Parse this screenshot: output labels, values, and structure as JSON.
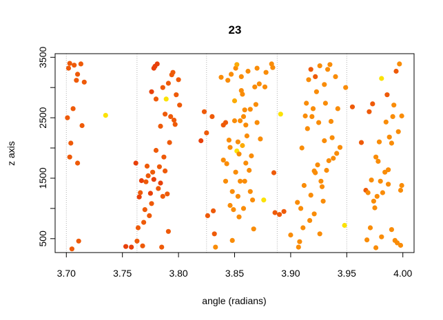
{
  "chart_data": {
    "type": "scatter",
    "title": "23",
    "xlabel": "angle (radians)",
    "ylabel": "z axis",
    "xlim": [
      3.69,
      4.01
    ],
    "ylim": [
      270,
      3560
    ],
    "x_ticks": [
      3.7,
      3.75,
      3.8,
      3.85,
      3.9,
      3.95,
      4.0
    ],
    "x_tick_labels": [
      "3.70",
      "3.75",
      "3.80",
      "3.85",
      "3.90",
      "3.95",
      "4.00"
    ],
    "y_ticks": [
      500,
      1000,
      1500,
      2000,
      2500,
      3000,
      3500
    ],
    "y_tick_labels": [
      "500",
      "",
      "1500",
      "",
      "2500",
      "",
      "3500"
    ],
    "grid": "vertical-dotted",
    "grid_x": [
      3.7,
      3.763,
      3.825,
      3.888,
      3.95
    ],
    "colors": {
      "red": "#e8400a",
      "red-orange": "#ee5a08",
      "orange": "#f98c08",
      "amber": "#fbab05",
      "yellow": "#fbe205"
    },
    "points": [
      [
        3.701,
        2500,
        "red-orange"
      ],
      [
        3.702,
        3320,
        "red-orange"
      ],
      [
        3.703,
        3400,
        "red-orange"
      ],
      [
        3.703,
        1850,
        "red-orange"
      ],
      [
        3.704,
        2080,
        "red-orange"
      ],
      [
        3.705,
        330,
        "red-orange"
      ],
      [
        3.706,
        2650,
        "red-orange"
      ],
      [
        3.707,
        3370,
        "red-orange"
      ],
      [
        3.709,
        3120,
        "red-orange"
      ],
      [
        3.71,
        1750,
        "red-orange"
      ],
      [
        3.71,
        3220,
        "red-orange"
      ],
      [
        3.711,
        460,
        "red-orange"
      ],
      [
        3.713,
        3390,
        "red-orange"
      ],
      [
        3.714,
        2370,
        "red-orange"
      ],
      [
        3.716,
        3090,
        "red-orange"
      ],
      [
        3.735,
        2540,
        "yellow"
      ],
      [
        3.753,
        370,
        "red"
      ],
      [
        3.758,
        360,
        "red"
      ],
      [
        3.762,
        1750,
        "red"
      ],
      [
        3.763,
        460,
        "red-orange"
      ],
      [
        3.764,
        680,
        "red-orange"
      ],
      [
        3.765,
        1190,
        "red"
      ],
      [
        3.766,
        1260,
        "red-orange"
      ],
      [
        3.767,
        1460,
        "red"
      ],
      [
        3.768,
        380,
        "red-orange"
      ],
      [
        3.769,
        770,
        "red-orange"
      ],
      [
        3.77,
        980,
        "red-orange"
      ],
      [
        3.771,
        1440,
        "red-orange"
      ],
      [
        3.772,
        1700,
        "red-orange"
      ],
      [
        3.773,
        1540,
        "red-orange"
      ],
      [
        3.774,
        880,
        "red-orange"
      ],
      [
        3.775,
        1250,
        "red"
      ],
      [
        3.776,
        1080,
        "red-orange"
      ],
      [
        3.776,
        2930,
        "red"
      ],
      [
        3.777,
        1600,
        "red-orange"
      ],
      [
        3.778,
        3320,
        "red"
      ],
      [
        3.778,
        1480,
        "red"
      ],
      [
        3.779,
        3350,
        "red"
      ],
      [
        3.78,
        1960,
        "red-orange"
      ],
      [
        3.78,
        2810,
        "red-orange"
      ],
      [
        3.781,
        3390,
        "red"
      ],
      [
        3.782,
        1330,
        "red-orange"
      ],
      [
        3.783,
        1690,
        "red-orange"
      ],
      [
        3.784,
        1420,
        "red"
      ],
      [
        3.784,
        2360,
        "red-orange"
      ],
      [
        3.785,
        360,
        "red-orange"
      ],
      [
        3.786,
        3000,
        "red-orange"
      ],
      [
        3.786,
        1200,
        "red-orange"
      ],
      [
        3.787,
        1850,
        "red-orange"
      ],
      [
        3.788,
        1620,
        "red-orange"
      ],
      [
        3.788,
        2560,
        "red-orange"
      ],
      [
        3.789,
        2810,
        "yellow"
      ],
      [
        3.79,
        1240,
        "red-orange"
      ],
      [
        3.791,
        3070,
        "red-orange"
      ],
      [
        3.791,
        620,
        "red-orange"
      ],
      [
        3.792,
        2090,
        "red-orange"
      ],
      [
        3.793,
        2520,
        "red-orange"
      ],
      [
        3.794,
        3210,
        "red-orange"
      ],
      [
        3.795,
        3250,
        "red-orange"
      ],
      [
        3.796,
        2460,
        "red-orange"
      ],
      [
        3.797,
        2390,
        "red-orange"
      ],
      [
        3.798,
        2880,
        "red-orange"
      ],
      [
        3.8,
        3130,
        "red-orange"
      ],
      [
        3.801,
        2710,
        "red-orange"
      ],
      [
        3.82,
        2120,
        "red"
      ],
      [
        3.823,
        2600,
        "red-orange"
      ],
      [
        3.825,
        2250,
        "red-orange"
      ],
      [
        3.826,
        880,
        "red-orange"
      ],
      [
        3.83,
        2520,
        "red-orange"
      ],
      [
        3.831,
        960,
        "red-orange"
      ],
      [
        3.832,
        580,
        "red-orange"
      ],
      [
        3.833,
        360,
        "orange"
      ],
      [
        3.838,
        3170,
        "orange"
      ],
      [
        3.84,
        2380,
        "red-orange"
      ],
      [
        3.84,
        1800,
        "orange"
      ],
      [
        3.842,
        1450,
        "orange"
      ],
      [
        3.842,
        2420,
        "red-orange"
      ],
      [
        3.843,
        1740,
        "orange"
      ],
      [
        3.844,
        3120,
        "orange"
      ],
      [
        3.845,
        2130,
        "orange"
      ],
      [
        3.846,
        2010,
        "orange"
      ],
      [
        3.846,
        1050,
        "orange"
      ],
      [
        3.847,
        3220,
        "orange"
      ],
      [
        3.848,
        1280,
        "orange"
      ],
      [
        3.848,
        470,
        "orange"
      ],
      [
        3.849,
        980,
        "orange"
      ],
      [
        3.85,
        2450,
        "orange"
      ],
      [
        3.85,
        2780,
        "amber"
      ],
      [
        3.851,
        1600,
        "orange"
      ],
      [
        3.851,
        3320,
        "orange"
      ],
      [
        3.852,
        3380,
        "amber"
      ],
      [
        3.852,
        1950,
        "yellow"
      ],
      [
        3.853,
        2100,
        "orange"
      ],
      [
        3.853,
        1200,
        "orange"
      ],
      [
        3.854,
        1900,
        "orange"
      ],
      [
        3.854,
        860,
        "orange"
      ],
      [
        3.855,
        2450,
        "orange"
      ],
      [
        3.855,
        1450,
        "orange"
      ],
      [
        3.856,
        3180,
        "orange"
      ],
      [
        3.856,
        2950,
        "orange"
      ],
      [
        3.857,
        2890,
        "orange"
      ],
      [
        3.857,
        2040,
        "amber"
      ],
      [
        3.858,
        2520,
        "orange"
      ],
      [
        3.858,
        1000,
        "orange"
      ],
      [
        3.859,
        2630,
        "orange"
      ],
      [
        3.859,
        1450,
        "orange"
      ],
      [
        3.86,
        1750,
        "orange"
      ],
      [
        3.86,
        2380,
        "orange"
      ],
      [
        3.861,
        2200,
        "orange"
      ],
      [
        3.862,
        3270,
        "orange"
      ],
      [
        3.863,
        1630,
        "orange"
      ],
      [
        3.864,
        1280,
        "orange"
      ],
      [
        3.864,
        2640,
        "orange"
      ],
      [
        3.865,
        1870,
        "orange"
      ],
      [
        3.866,
        1140,
        "orange"
      ],
      [
        3.867,
        660,
        "orange"
      ],
      [
        3.868,
        3010,
        "orange"
      ],
      [
        3.869,
        2720,
        "orange"
      ],
      [
        3.87,
        3320,
        "orange"
      ],
      [
        3.87,
        2420,
        "orange"
      ],
      [
        3.872,
        3060,
        "orange"
      ],
      [
        3.873,
        2150,
        "orange"
      ],
      [
        3.876,
        1140,
        "yellow"
      ],
      [
        3.877,
        3010,
        "orange"
      ],
      [
        3.878,
        3250,
        "orange"
      ],
      [
        3.883,
        3390,
        "orange"
      ],
      [
        3.884,
        3330,
        "orange"
      ],
      [
        3.885,
        1590,
        "red-orange"
      ],
      [
        3.886,
        930,
        "red-orange"
      ],
      [
        3.89,
        900,
        "red-orange"
      ],
      [
        3.891,
        2560,
        "yellow"
      ],
      [
        3.894,
        950,
        "red-orange"
      ],
      [
        3.9,
        560,
        "orange"
      ],
      [
        3.906,
        1100,
        "orange"
      ],
      [
        3.907,
        360,
        "orange"
      ],
      [
        3.908,
        450,
        "orange"
      ],
      [
        3.909,
        1000,
        "orange"
      ],
      [
        3.91,
        2000,
        "orange"
      ],
      [
        3.911,
        680,
        "orange"
      ],
      [
        3.912,
        1380,
        "orange"
      ],
      [
        3.913,
        2530,
        "orange"
      ],
      [
        3.914,
        2740,
        "orange"
      ],
      [
        3.915,
        2320,
        "orange"
      ],
      [
        3.916,
        3130,
        "orange"
      ],
      [
        3.917,
        800,
        "orange"
      ],
      [
        3.918,
        3300,
        "red-orange"
      ],
      [
        3.918,
        1220,
        "orange"
      ],
      [
        3.919,
        2520,
        "orange"
      ],
      [
        3.92,
        2650,
        "orange"
      ],
      [
        3.921,
        1620,
        "orange"
      ],
      [
        3.921,
        910,
        "orange"
      ],
      [
        3.922,
        1590,
        "orange"
      ],
      [
        3.922,
        3180,
        "red-orange"
      ],
      [
        3.923,
        2930,
        "orange"
      ],
      [
        3.924,
        1720,
        "orange"
      ],
      [
        3.925,
        2420,
        "orange"
      ],
      [
        3.926,
        3360,
        "orange"
      ],
      [
        3.926,
        580,
        "orange"
      ],
      [
        3.927,
        1450,
        "orange"
      ],
      [
        3.928,
        1360,
        "orange"
      ],
      [
        3.929,
        1120,
        "orange"
      ],
      [
        3.93,
        3050,
        "orange"
      ],
      [
        3.93,
        2120,
        "orange"
      ],
      [
        3.931,
        2740,
        "orange"
      ],
      [
        3.932,
        1630,
        "orange"
      ],
      [
        3.933,
        3300,
        "orange"
      ],
      [
        3.934,
        1790,
        "orange"
      ],
      [
        3.935,
        3380,
        "orange"
      ],
      [
        3.936,
        2440,
        "orange"
      ],
      [
        3.937,
        2170,
        "orange"
      ],
      [
        3.938,
        1830,
        "orange"
      ],
      [
        3.94,
        3180,
        "orange"
      ],
      [
        3.941,
        1910,
        "orange"
      ],
      [
        3.942,
        2650,
        "orange"
      ],
      [
        3.944,
        2010,
        "orange"
      ],
      [
        3.948,
        720,
        "yellow"
      ],
      [
        3.949,
        3000,
        "orange"
      ],
      [
        3.955,
        2680,
        "red-orange"
      ],
      [
        3.963,
        2090,
        "red-orange"
      ],
      [
        3.967,
        1300,
        "red-orange"
      ],
      [
        3.968,
        480,
        "orange"
      ],
      [
        3.969,
        1260,
        "orange"
      ],
      [
        3.97,
        2600,
        "red-orange"
      ],
      [
        3.971,
        680,
        "orange"
      ],
      [
        3.972,
        1470,
        "orange"
      ],
      [
        3.973,
        2730,
        "red-orange"
      ],
      [
        3.974,
        1120,
        "orange"
      ],
      [
        3.975,
        1010,
        "orange"
      ],
      [
        3.976,
        1850,
        "orange"
      ],
      [
        3.976,
        350,
        "orange"
      ],
      [
        3.977,
        1200,
        "orange"
      ],
      [
        3.978,
        1780,
        "orange"
      ],
      [
        3.979,
        2100,
        "orange"
      ],
      [
        3.98,
        1450,
        "orange"
      ],
      [
        3.981,
        3150,
        "yellow"
      ],
      [
        3.981,
        530,
        "orange"
      ],
      [
        3.982,
        1260,
        "orange"
      ],
      [
        3.984,
        1600,
        "orange"
      ],
      [
        3.985,
        2430,
        "orange"
      ],
      [
        3.986,
        2880,
        "red-orange"
      ],
      [
        3.987,
        1640,
        "orange"
      ],
      [
        3.987,
        1400,
        "orange"
      ],
      [
        3.988,
        2180,
        "orange"
      ],
      [
        3.99,
        650,
        "orange"
      ],
      [
        3.99,
        2080,
        "orange"
      ],
      [
        3.991,
        2520,
        "orange"
      ],
      [
        3.992,
        2710,
        "orange"
      ],
      [
        3.993,
        470,
        "orange"
      ],
      [
        3.994,
        3270,
        "red-orange"
      ],
      [
        3.995,
        430,
        "orange"
      ],
      [
        3.996,
        2270,
        "orange"
      ],
      [
        3.997,
        3390,
        "orange"
      ],
      [
        3.998,
        1300,
        "orange"
      ],
      [
        3.998,
        390,
        "orange"
      ],
      [
        3.999,
        1380,
        "orange"
      ],
      [
        3.999,
        2530,
        "orange"
      ]
    ]
  }
}
